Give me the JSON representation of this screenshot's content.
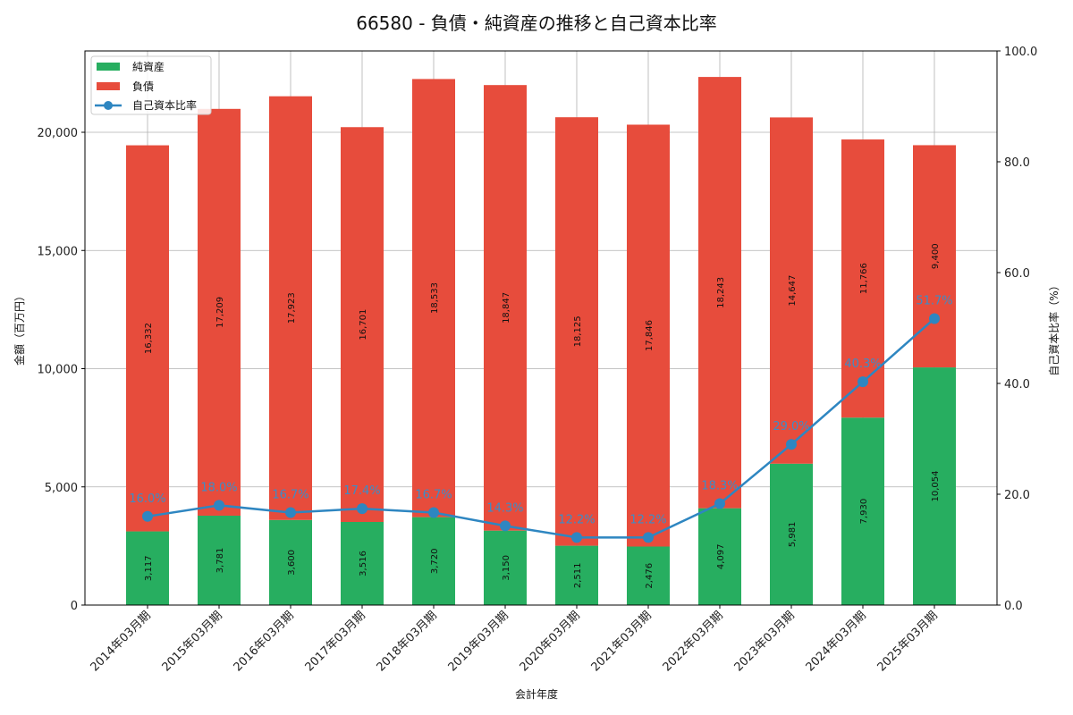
{
  "chart_data": {
    "type": "bar",
    "subtype": "stacked_bar_with_line",
    "title": "66580 - 負債・純資産の推移と自己資本比率",
    "xlabel": "会計年度",
    "ylabel": "金額（百万円）",
    "ylabel_right": "自己資本比率（%）",
    "ylim": [
      0,
      23500
    ],
    "ylim_right": [
      0,
      100
    ],
    "yticks": [
      "0",
      "5,000",
      "10,000",
      "15,000",
      "20,000"
    ],
    "yticks_right": [
      "0.0",
      "20.0",
      "40.0",
      "60.0",
      "80.0",
      "100.0"
    ],
    "grid": true,
    "legend_position": "upper left",
    "categories": [
      "2014年03月期",
      "2015年03月期",
      "2016年03月期",
      "2017年03月期",
      "2018年03月期",
      "2019年03月期",
      "2020年03月期",
      "2021年03月期",
      "2022年03月期",
      "2023年03月期",
      "2024年03月期",
      "2025年03月期"
    ],
    "series": [
      {
        "name": "純資産",
        "type": "bar",
        "color": "#27ae60",
        "values": [
          3117,
          3781,
          3600,
          3516,
          3720,
          3150,
          2511,
          2476,
          4097,
          5981,
          7930,
          10054
        ],
        "labels": [
          "3,117",
          "3,781",
          "3,600",
          "3,516",
          "3,720",
          "3,150",
          "2,511",
          "2,476",
          "4,097",
          "5,981",
          "7,930",
          "10,054"
        ]
      },
      {
        "name": "負債",
        "type": "bar",
        "color": "#e74c3c",
        "values": [
          16332,
          17209,
          17923,
          16701,
          18533,
          18847,
          18125,
          17846,
          18243,
          14647,
          11766,
          9400
        ],
        "labels": [
          "16,332",
          "17,209",
          "17,923",
          "16,701",
          "18,533",
          "18,847",
          "18,125",
          "17,846",
          "18,243",
          "14,647",
          "11,766",
          "9,400"
        ]
      },
      {
        "name": "自己資本比率",
        "type": "line",
        "axis": "right",
        "color": "#2e86c1",
        "values": [
          16.0,
          18.0,
          16.7,
          17.4,
          16.7,
          14.3,
          12.2,
          12.2,
          18.3,
          29.0,
          40.3,
          51.7
        ],
        "labels": [
          "16.0%",
          "18.0%",
          "16.7%",
          "17.4%",
          "16.7%",
          "14.3%",
          "12.2%",
          "12.2%",
          "18.3%",
          "29.0%",
          "40.3%",
          "51.7%"
        ]
      }
    ]
  }
}
